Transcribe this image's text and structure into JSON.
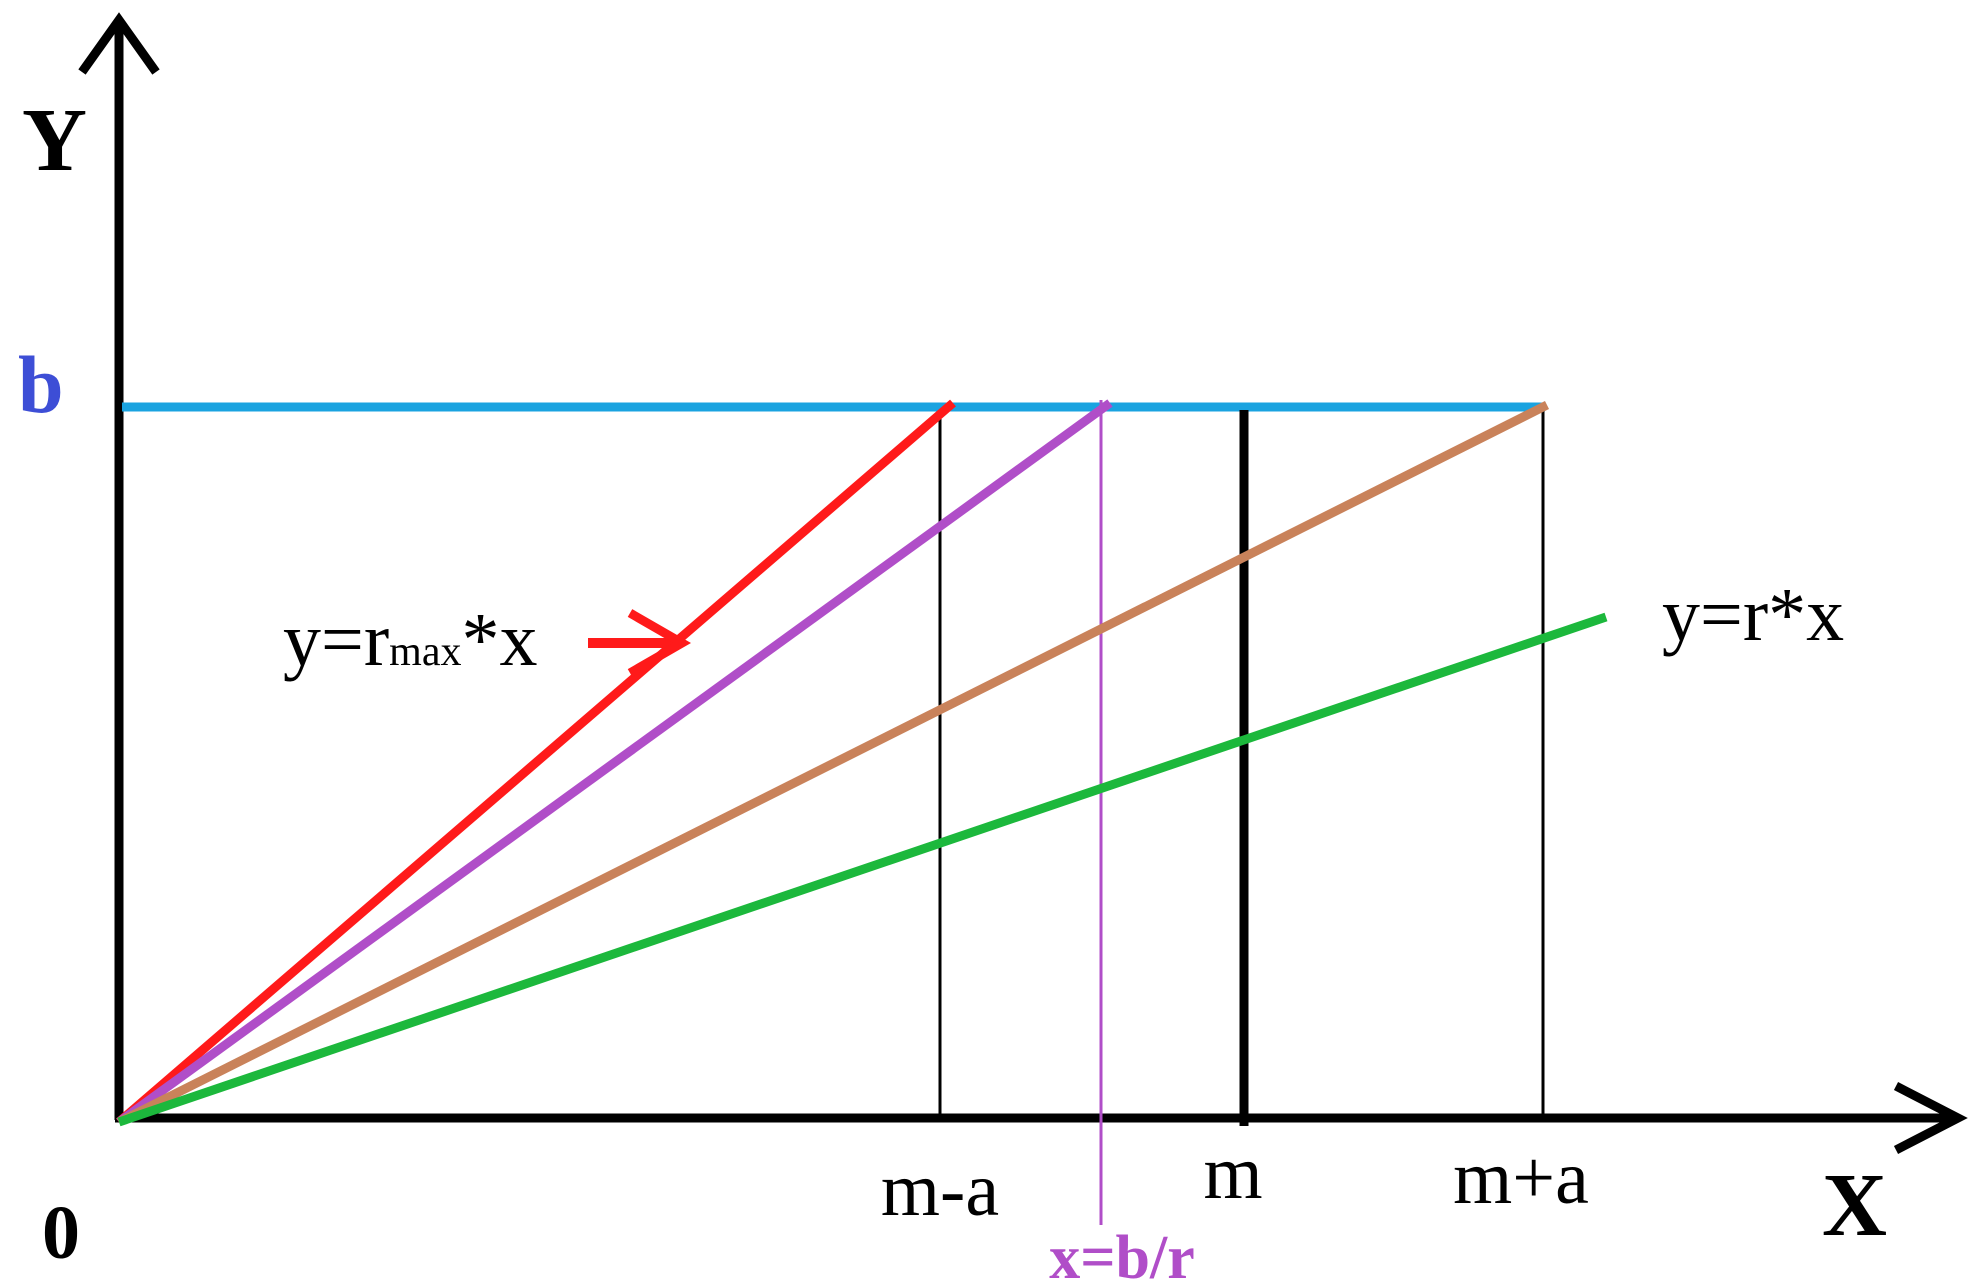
{
  "labels": {
    "y_axis": "Y",
    "x_axis": "X",
    "origin": "0",
    "b": "b",
    "m_minus_a": "m-a",
    "m": "m",
    "m_plus_a": "m+a",
    "x_eq_b_over_r": "x=b/r",
    "y_rmax_x_prefix": "y=r",
    "y_rmax_x_sub": "max",
    "y_rmax_x_suffix": "*x",
    "y_r_x": "y=r*x"
  },
  "colors": {
    "axis": "#000000",
    "b_line": "#1aa3e0",
    "b_label": "#3d4ed6",
    "r_max_line": "#ff1a1a",
    "b_over_r_line": "#b04ec8",
    "m_plus_a_line": "#c9825a",
    "r_x_line": "#1cb83c",
    "guide": "#000000",
    "b_over_r_label": "#b04ec8"
  }
}
